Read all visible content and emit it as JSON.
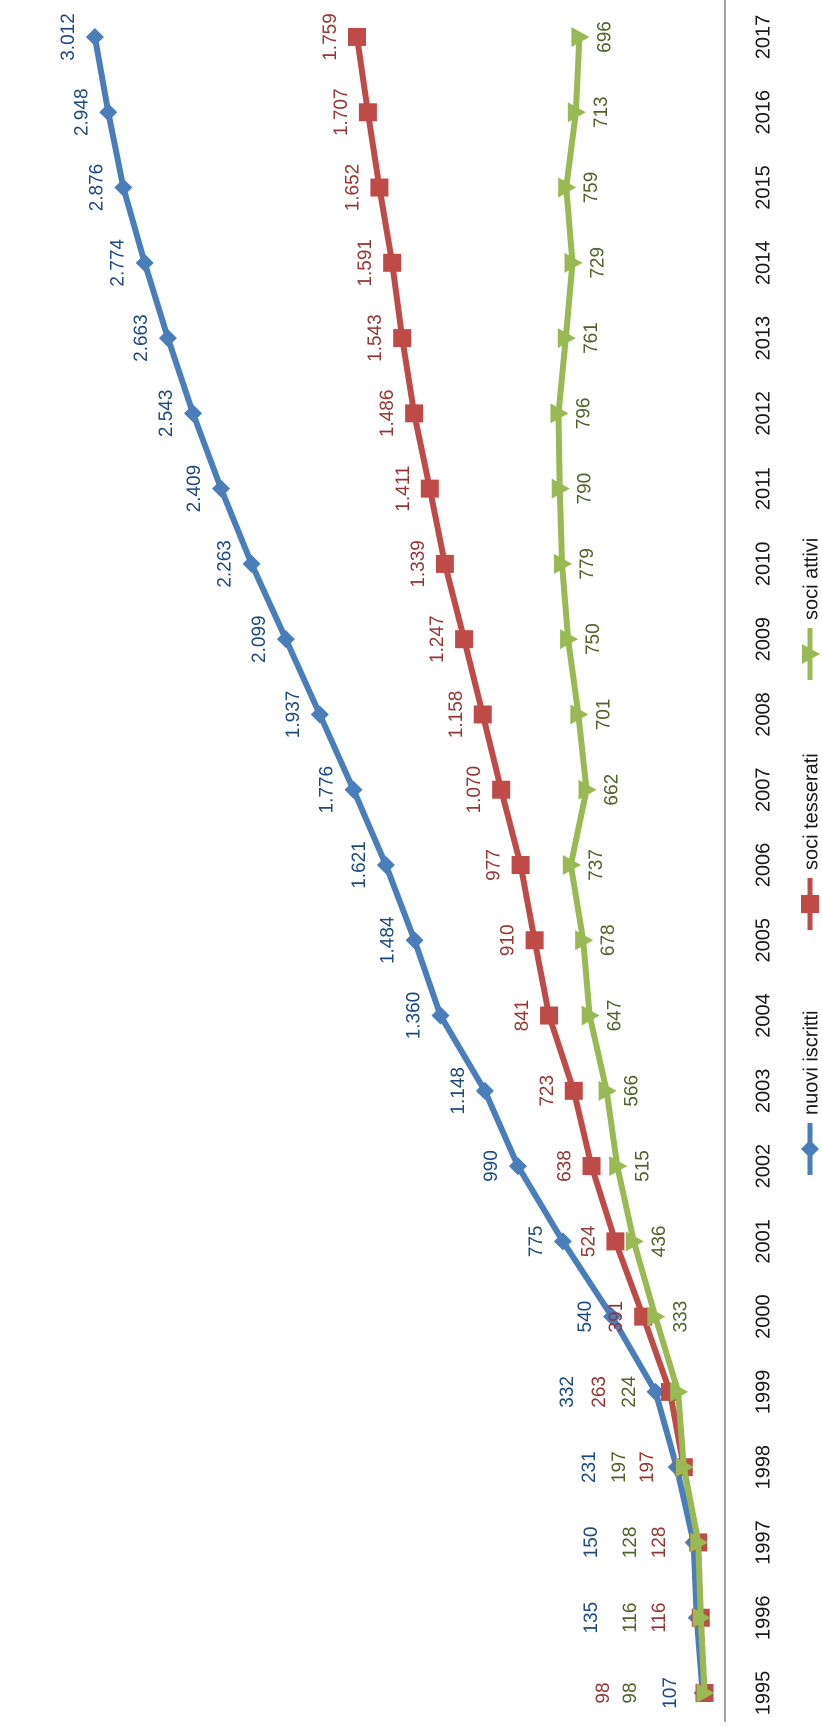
{
  "chart_data": {
    "type": "line",
    "orientation": "rotated-90-clockwise",
    "categories": [
      "1995",
      "1996",
      "1997",
      "1998",
      "1999",
      "2000",
      "2001",
      "2002",
      "2003",
      "2004",
      "2005",
      "2006",
      "2007",
      "2008",
      "2009",
      "2010",
      "2011",
      "2012",
      "2013",
      "2014",
      "2015",
      "2016",
      "2017"
    ],
    "series": [
      {
        "name": "nuovi iscritti",
        "color": "#4a7ebb",
        "label_color": "#1f497d",
        "marker": "diamond",
        "values": [
          107,
          135,
          150,
          231,
          332,
          540,
          775,
          990,
          1148,
          1360,
          1484,
          1621,
          1776,
          1937,
          2099,
          2263,
          2409,
          2543,
          2663,
          2774,
          2876,
          2948,
          3012
        ],
        "labels": [
          "107",
          "135",
          "150",
          "231",
          "332",
          "540",
          "775",
          "990",
          "1.148",
          "1.360",
          "1.484",
          "1.621",
          "1.776",
          "1.937",
          "2.099",
          "2.263",
          "2.409",
          "2.543",
          "2.663",
          "2.774",
          "2.876",
          "2.948",
          "3.012"
        ]
      },
      {
        "name": "soci tesserati",
        "color": "#be4b48",
        "label_color": "#943634",
        "marker": "square",
        "values": [
          98,
          116,
          128,
          197,
          263,
          391,
          524,
          638,
          723,
          841,
          910,
          977,
          1070,
          1158,
          1247,
          1339,
          1411,
          1486,
          1543,
          1591,
          1652,
          1707,
          1759
        ],
        "labels": [
          "98",
          "116",
          "128",
          "197",
          "263",
          "391",
          "524",
          "638",
          "723",
          "841",
          "910",
          "977",
          "1.070",
          "1.158",
          "1.247",
          "1.339",
          "1.411",
          "1.486",
          "1.543",
          "1.591",
          "1.652",
          "1.707",
          "1.759"
        ]
      },
      {
        "name": "soci attivi",
        "color": "#98b954",
        "label_color": "#4f6228",
        "marker": "triangle",
        "values": [
          98,
          116,
          128,
          197,
          224,
          333,
          436,
          515,
          566,
          647,
          678,
          737,
          662,
          701,
          750,
          779,
          790,
          796,
          761,
          729,
          759,
          713,
          696
        ],
        "labels": [
          "98",
          "116",
          "128",
          "197",
          "224",
          "333",
          "436",
          "515",
          "566",
          "647",
          "678",
          "737",
          "662",
          "701",
          "750",
          "779",
          "790",
          "796",
          "761",
          "729",
          "759",
          "713",
          "696"
        ]
      }
    ],
    "ylim": [
      0,
      3050
    ],
    "grid": false,
    "legend_position": "bottom"
  }
}
